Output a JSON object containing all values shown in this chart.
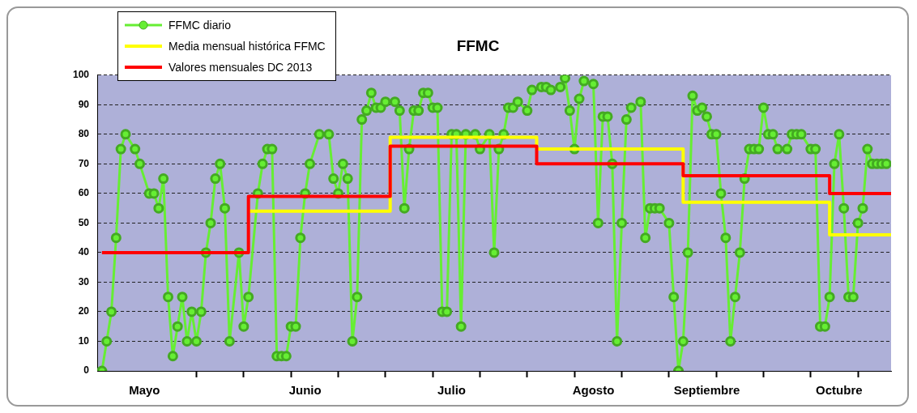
{
  "chart_data": {
    "type": "line",
    "title": "FFMC",
    "legend": "top left",
    "grid": "y",
    "marker": "circle",
    "xlim": [
      "--04-30",
      "--10-15"
    ],
    "ylim": [
      0,
      100
    ],
    "yticks": [
      0,
      10,
      20,
      30,
      40,
      50,
      60,
      70,
      80,
      90,
      100
    ],
    "xticks": [
      {
        "value": "--05-10",
        "label": "Mayo"
      },
      {
        "value": "--05-21",
        "label": null
      },
      {
        "value": "--05-31",
        "label": null
      },
      {
        "value": "--06-10",
        "label": null
      },
      {
        "value": "--06-13",
        "label": "Junio"
      },
      {
        "value": "--06-20",
        "label": null
      },
      {
        "value": "--06-30",
        "label": null
      },
      {
        "value": "--07-10",
        "label": null
      },
      {
        "value": "--07-14",
        "label": "Julio"
      },
      {
        "value": "--07-20",
        "label": null
      },
      {
        "value": "--07-30",
        "label": null
      },
      {
        "value": "--08-09",
        "label": null
      },
      {
        "value": "--08-13",
        "label": "Agosto"
      },
      {
        "value": "--08-19",
        "label": null
      },
      {
        "value": "--08-29",
        "label": null
      },
      {
        "value": "--09-06",
        "label": "Septiembre"
      },
      {
        "value": "--09-08",
        "label": null
      },
      {
        "value": "--09-18",
        "label": null
      },
      {
        "value": "--09-28",
        "label": null
      },
      {
        "value": "--10-04",
        "label": "Octubre"
      },
      {
        "value": "--10-08",
        "label": null
      }
    ],
    "series": [
      {
        "name": "FFMC diario",
        "type": "line",
        "color": "#66ee33",
        "x": [
          "--05-01",
          "--05-02",
          "--05-03",
          "--05-04",
          "--05-05",
          "--05-06",
          "--05-08",
          "--05-09",
          "--05-11",
          "--05-12",
          "--05-13",
          "--05-14",
          "--05-15",
          "--05-16",
          "--05-17",
          "--05-18",
          "--05-19",
          "--05-20",
          "--05-21",
          "--05-22",
          "--05-23",
          "--05-24",
          "--05-25",
          "--05-26",
          "--05-27",
          "--05-28",
          "--05-30",
          "--05-31",
          "--06-01",
          "--06-03",
          "--06-04",
          "--06-05",
          "--06-06",
          "--06-07",
          "--06-08",
          "--06-09",
          "--06-10",
          "--06-11",
          "--06-12",
          "--06-13",
          "--06-14",
          "--06-16",
          "--06-18",
          "--06-19",
          "--06-20",
          "--06-21",
          "--06-22",
          "--06-23",
          "--06-24",
          "--06-25",
          "--06-26",
          "--06-27",
          "--06-28",
          "--06-29",
          "--06-30",
          "--07-02",
          "--07-03",
          "--07-04",
          "--07-05",
          "--07-06",
          "--07-07",
          "--07-08",
          "--07-09",
          "--07-10",
          "--07-11",
          "--07-12",
          "--07-13",
          "--07-14",
          "--07-15",
          "--07-16",
          "--07-17",
          "--07-19",
          "--07-20",
          "--07-22",
          "--07-23",
          "--07-24",
          "--07-25",
          "--07-26",
          "--07-27",
          "--07-28",
          "--07-30",
          "--07-31",
          "--08-02",
          "--08-03",
          "--08-04",
          "--08-06",
          "--08-07",
          "--08-08",
          "--08-09",
          "--08-10",
          "--08-11",
          "--08-13",
          "--08-14",
          "--08-15",
          "--08-16",
          "--08-17",
          "--08-18",
          "--08-19",
          "--08-20",
          "--08-21",
          "--08-23",
          "--08-24",
          "--08-25",
          "--08-26",
          "--08-27",
          "--08-29",
          "--08-30",
          "--08-31",
          "--09-01",
          "--09-02",
          "--09-03",
          "--09-04",
          "--09-05",
          "--09-06",
          "--09-07",
          "--09-08",
          "--09-09",
          "--09-10",
          "--09-11",
          "--09-12",
          "--09-13",
          "--09-14",
          "--09-15",
          "--09-16",
          "--09-17",
          "--09-18",
          "--09-19",
          "--09-20",
          "--09-21",
          "--09-23",
          "--09-24",
          "--09-25",
          "--09-26",
          "--09-28",
          "--09-29",
          "--09-30",
          "--10-01",
          "--10-02",
          "--10-03",
          "--10-04",
          "--10-05",
          "--10-06",
          "--10-07",
          "--10-08",
          "--10-09",
          "--10-10",
          "--10-11",
          "--10-12",
          "--10-13",
          "--10-14"
        ],
        "values": [
          0,
          10,
          20,
          45,
          75,
          80,
          75,
          70,
          60,
          60,
          55,
          65,
          25,
          5,
          15,
          25,
          10,
          20,
          10,
          20,
          40,
          50,
          65,
          70,
          55,
          10,
          40,
          15,
          25,
          60,
          70,
          75,
          75,
          5,
          5,
          5,
          15,
          15,
          45,
          60,
          70,
          80,
          80,
          65,
          60,
          70,
          65,
          10,
          25,
          85,
          88,
          94,
          89,
          89,
          91,
          91,
          88,
          55,
          75,
          88,
          88,
          94,
          94,
          89,
          89,
          20,
          20,
          80,
          80,
          15,
          80,
          80,
          75,
          80,
          40,
          75,
          80,
          89,
          89,
          91,
          88,
          95,
          96,
          96,
          95,
          96,
          99,
          88,
          75,
          92,
          98,
          97,
          50,
          86,
          86,
          70,
          10,
          50,
          85,
          89,
          91,
          45,
          55,
          55,
          55,
          50,
          25,
          0,
          10,
          40,
          93,
          88,
          89,
          86,
          80,
          80,
          60,
          45,
          10,
          25,
          40,
          65,
          75,
          75,
          75,
          89,
          80,
          80,
          75,
          75,
          80,
          80,
          80,
          75,
          75,
          15,
          15,
          25,
          70,
          80,
          55,
          25,
          25,
          50,
          55,
          75,
          70,
          70,
          70,
          70
        ]
      },
      {
        "name": "Media mensual histórica FFMC",
        "type": "step",
        "marker": "none",
        "color": "#ffff00",
        "x": [
          "--06-01",
          "--07-01",
          "--08-01",
          "--09-01",
          "--10-02",
          "--10-15"
        ],
        "values": [
          54,
          79,
          75,
          57,
          46,
          46
        ]
      },
      {
        "name": "Valores mensuales  DC 2013",
        "type": "step",
        "marker": "none",
        "color": "#ff0000",
        "x": [
          "--05-01",
          "--06-01",
          "--07-01",
          "--08-01",
          "--09-01",
          "--10-02",
          "--10-15"
        ],
        "values": [
          40,
          59,
          76,
          70,
          66,
          60,
          60
        ]
      }
    ]
  }
}
